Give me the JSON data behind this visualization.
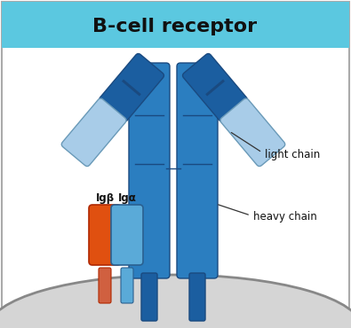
{
  "title": "B-cell receptor",
  "title_bg": "#5bc8e0",
  "title_color": "#111111",
  "bg_color": "#ffffff",
  "border_color": "#aaaaaa",
  "dark_blue": "#1b5ea0",
  "medium_blue": "#2b7ec0",
  "light_blue": "#a8cce8",
  "light_blue2": "#5aaad8",
  "orange": "#e05010",
  "orange_tail": "#d06040",
  "cell_color": "#d5d5d5",
  "cell_edge": "#888888",
  "label_light_chain": "light chain",
  "label_heavy_chain": "heavy chain",
  "label_igb": "Igβ",
  "label_iga": "Igα"
}
